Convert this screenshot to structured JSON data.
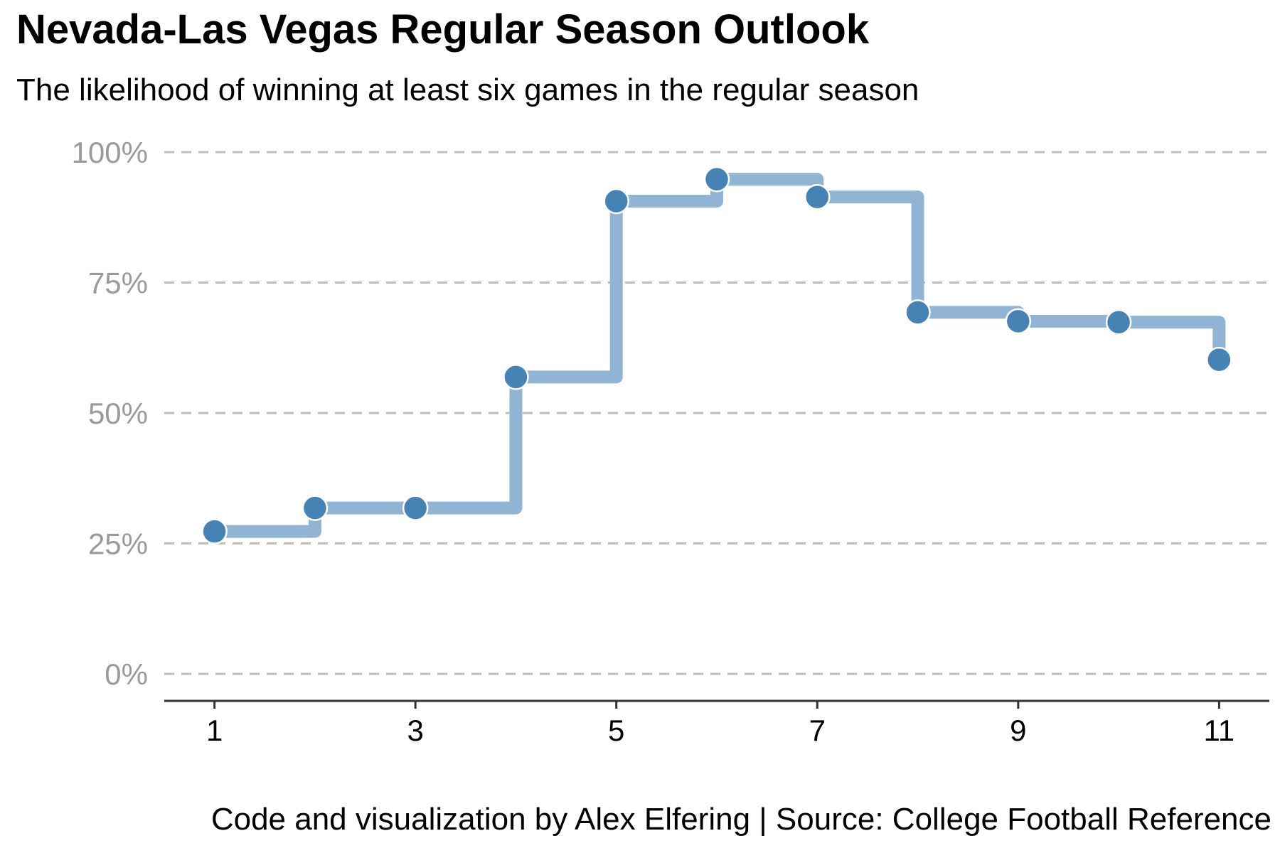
{
  "chart_data": {
    "type": "line",
    "step": true,
    "title": "Nevada-Las Vegas Regular Season Outlook",
    "subtitle": "The likelihood of winning at least six games in the regular season",
    "caption": "Code and visualization by Alex Elfering | Source: College Football Reference",
    "xlabel": "",
    "ylabel": "",
    "x": [
      1,
      2,
      3,
      4,
      5,
      6,
      7,
      8,
      9,
      10,
      11
    ],
    "values": [
      27.3,
      31.8,
      31.8,
      56.9,
      90.6,
      94.8,
      91.4,
      69.3,
      67.6,
      67.4,
      60.2
    ],
    "xlim": [
      0.5,
      11.5
    ],
    "ylim": [
      0,
      100
    ],
    "x_ticks": [
      "1",
      "3",
      "5",
      "7",
      "9",
      "11"
    ],
    "y_ticks": [
      "0%",
      "25%",
      "50%",
      "75%",
      "100%"
    ],
    "grid": "horizontal dashed",
    "legend": "none",
    "colors": {
      "step_line": "#92b4d4",
      "point": "#4682b4",
      "gridline": "#bdbdbd",
      "axis": "#333333",
      "y_tick_text": "#9a9a9a"
    }
  }
}
